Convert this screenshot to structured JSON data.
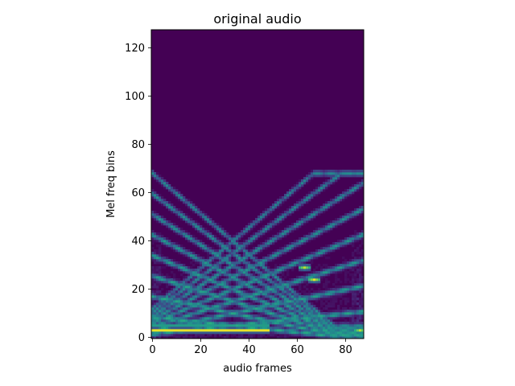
{
  "chart_data": {
    "type": "heatmap",
    "title": "original audio",
    "xlabel": "audio frames",
    "ylabel": "Mel freq bins",
    "xlim": [
      -0.5,
      87.5
    ],
    "ylim": [
      -0.5,
      127.5
    ],
    "n_frames": 88,
    "n_mel_bins": 128,
    "colormap": "viridis",
    "background_color": "#440154",
    "x_ticks": [
      0,
      20,
      40,
      60,
      80
    ],
    "y_ticks": [
      0,
      20,
      40,
      60,
      80,
      100,
      120
    ],
    "features": [
      {
        "kind": "steady_tone",
        "bin": 3,
        "frame_start": 0,
        "frame_end": 48,
        "intensity": 0.97
      },
      {
        "kind": "steady_tone",
        "bin": 5,
        "frame_start": 0,
        "frame_end": 48,
        "intensity": 0.55
      },
      {
        "kind": "falling_sweep",
        "harmonics": 8,
        "base_bin_start": 8.5,
        "slope_per_frame": -0.105,
        "intensity": 0.65
      },
      {
        "kind": "rising_sweep",
        "harmonics": 8,
        "base_bin_start": 1.5,
        "slope_per_frame": 0.105,
        "max_bin": 68,
        "intensity": 0.62
      },
      {
        "kind": "hotspot",
        "frame": 67,
        "bin": 24,
        "intensity": 0.97
      },
      {
        "kind": "hotspot",
        "frame": 63,
        "bin": 29,
        "intensity": 0.9
      },
      {
        "kind": "hotspot",
        "frame": 86,
        "bin": 3,
        "intensity": 0.9
      }
    ]
  }
}
